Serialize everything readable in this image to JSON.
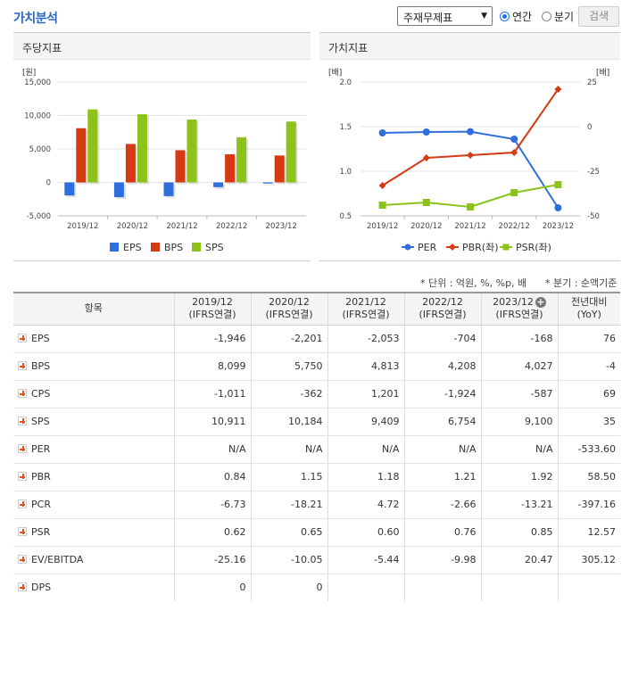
{
  "header": {
    "title": "가치분석",
    "select_value": "주재무제표",
    "radio_annual": "연간",
    "radio_quarter": "분기",
    "search_label": "검색"
  },
  "left_chart": {
    "panel_title": "주당지표",
    "unit": "[원]",
    "chart_data": {
      "type": "bar",
      "categories": [
        "2019/12",
        "2020/12",
        "2021/12",
        "2022/12",
        "2023/12"
      ],
      "series": [
        {
          "name": "EPS",
          "color": "#2f6fdd",
          "values": [
            -1946,
            -2201,
            -2053,
            -704,
            -168
          ]
        },
        {
          "name": "BPS",
          "color": "#d63a12",
          "values": [
            8099,
            5750,
            4813,
            4208,
            4027
          ]
        },
        {
          "name": "SPS",
          "color": "#8cc21a",
          "values": [
            10911,
            10184,
            9409,
            6754,
            9100
          ]
        }
      ],
      "ylim": [
        -5000,
        15000
      ],
      "yticks": [
        "15,000",
        "10,000",
        "5,000",
        "0",
        "-5,000"
      ],
      "ytick_values": [
        15000,
        10000,
        5000,
        0,
        -5000
      ],
      "grid": true,
      "legend": "bottom"
    }
  },
  "right_chart": {
    "panel_title": "가치지표",
    "unit_left": "[배]",
    "unit_right": "[배]",
    "chart_data": {
      "type": "line",
      "categories": [
        "2019/12",
        "2020/12",
        "2021/12",
        "2022/12",
        "2023/12"
      ],
      "left_axis": {
        "ticks": [
          "2.0",
          "1.5",
          "1.0",
          "0.5"
        ],
        "values": [
          2.0,
          1.5,
          1.0,
          0.5
        ],
        "ylim": [
          0.5,
          2.0
        ]
      },
      "right_axis": {
        "ticks": [
          "25",
          "0",
          "-25",
          "-50"
        ],
        "values": [
          25,
          0,
          -25,
          -50
        ],
        "ylim": [
          -50,
          25
        ]
      },
      "series": [
        {
          "name": "PER",
          "axis": "right",
          "color": "#2f6fdd",
          "marker": "circle",
          "values": [
            -3.5,
            -3.0,
            -2.8,
            -7.0,
            -45.5
          ]
        },
        {
          "name": "PBR(좌)",
          "axis": "left",
          "color": "#d63a12",
          "marker": "diamond",
          "values": [
            0.84,
            1.15,
            1.18,
            1.21,
            1.92
          ]
        },
        {
          "name": "PSR(좌)",
          "axis": "left",
          "color": "#8cc21a",
          "marker": "square",
          "values": [
            0.62,
            0.65,
            0.6,
            0.76,
            0.85
          ]
        }
      ],
      "grid": true,
      "legend": "bottom"
    }
  },
  "notes": {
    "unit_note": "* 단위 : 억원, %, %p, 배",
    "quarter_note": "* 분기 : 순액기준"
  },
  "table": {
    "head_item": "항목",
    "periods": [
      {
        "year": "2019/12",
        "basis": "(IFRS연결)"
      },
      {
        "year": "2020/12",
        "basis": "(IFRS연결)"
      },
      {
        "year": "2021/12",
        "basis": "(IFRS연결)"
      },
      {
        "year": "2022/12",
        "basis": "(IFRS연결)"
      },
      {
        "year": "2023/12",
        "basis": "(IFRS연결)"
      }
    ],
    "yoy_label": "전년대비",
    "yoy_sub": "(YoY)",
    "rows": [
      {
        "label": "EPS",
        "values": [
          "-1,946",
          "-2,201",
          "-2,053",
          "-704",
          "-168"
        ],
        "yoy": "76"
      },
      {
        "label": "BPS",
        "values": [
          "8,099",
          "5,750",
          "4,813",
          "4,208",
          "4,027"
        ],
        "yoy": "-4"
      },
      {
        "label": "CPS",
        "values": [
          "-1,011",
          "-362",
          "1,201",
          "-1,924",
          "-587"
        ],
        "yoy": "69"
      },
      {
        "label": "SPS",
        "values": [
          "10,911",
          "10,184",
          "9,409",
          "6,754",
          "9,100"
        ],
        "yoy": "35"
      },
      {
        "label": "PER",
        "values": [
          "N/A",
          "N/A",
          "N/A",
          "N/A",
          "N/A"
        ],
        "yoy": "-533.60"
      },
      {
        "label": "PBR",
        "values": [
          "0.84",
          "1.15",
          "1.18",
          "1.21",
          "1.92"
        ],
        "yoy": "58.50"
      },
      {
        "label": "PCR",
        "values": [
          "-6.73",
          "-18.21",
          "4.72",
          "-2.66",
          "-13.21"
        ],
        "yoy": "-397.16"
      },
      {
        "label": "PSR",
        "values": [
          "0.62",
          "0.65",
          "0.60",
          "0.76",
          "0.85"
        ],
        "yoy": "12.57"
      },
      {
        "label": "EV/EBITDA",
        "values": [
          "-25.16",
          "-10.05",
          "-5.44",
          "-9.98",
          "20.47"
        ],
        "yoy": "305.12"
      },
      {
        "label": "DPS",
        "values": [
          "0",
          "0",
          "",
          "",
          ""
        ],
        "yoy": ""
      }
    ]
  }
}
